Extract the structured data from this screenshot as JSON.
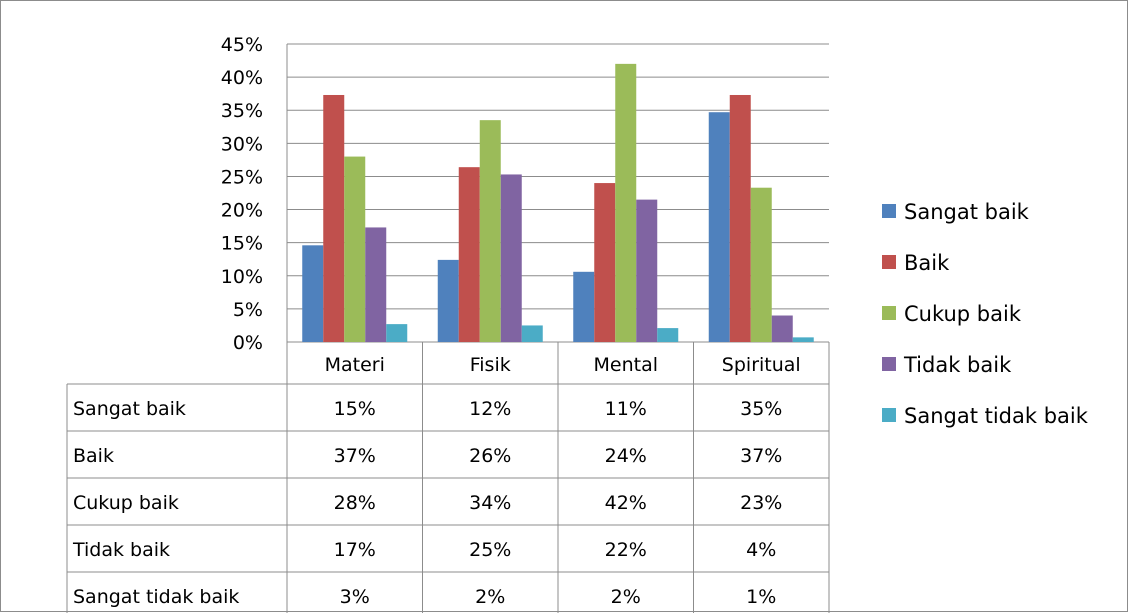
{
  "chart_data": {
    "type": "bar",
    "title": "",
    "xlabel": "",
    "ylabel": "",
    "ylim": [
      0,
      45
    ],
    "y_tick_values": [
      0,
      5,
      10,
      15,
      20,
      25,
      30,
      35,
      40,
      45
    ],
    "y_tick_labels": [
      "0%",
      "5%",
      "10%",
      "15%",
      "20%",
      "25%",
      "30%",
      "35%",
      "40%",
      "45%"
    ],
    "grid": true,
    "legend_position": "right",
    "categories": [
      "Materi",
      "Fisik",
      "Mental",
      "Spiritual"
    ],
    "series": [
      {
        "name": "Sangat baik",
        "color": "#4f81bd",
        "values": [
          14.6,
          12.4,
          10.6,
          34.7
        ],
        "table_labels": [
          "15%",
          "12%",
          "11%",
          "35%"
        ]
      },
      {
        "name": "Baik",
        "color": "#c0504d",
        "values": [
          37.3,
          26.4,
          24.0,
          37.3
        ],
        "table_labels": [
          "37%",
          "26%",
          "24%",
          "37%"
        ]
      },
      {
        "name": "Cukup baik",
        "color": "#9bbb59",
        "values": [
          28.0,
          33.5,
          42.0,
          23.3
        ],
        "table_labels": [
          "28%",
          "34%",
          "42%",
          "23%"
        ]
      },
      {
        "name": "Tidak baik",
        "color": "#8064a2",
        "values": [
          17.3,
          25.3,
          21.5,
          4.0
        ],
        "table_labels": [
          "17%",
          "25%",
          "22%",
          "4%"
        ]
      },
      {
        "name": "Sangat tidak baik",
        "color": "#4bacc6",
        "values": [
          2.7,
          2.5,
          2.1,
          0.7
        ],
        "table_labels": [
          "3%",
          "2%",
          "2%",
          "1%"
        ]
      }
    ]
  }
}
